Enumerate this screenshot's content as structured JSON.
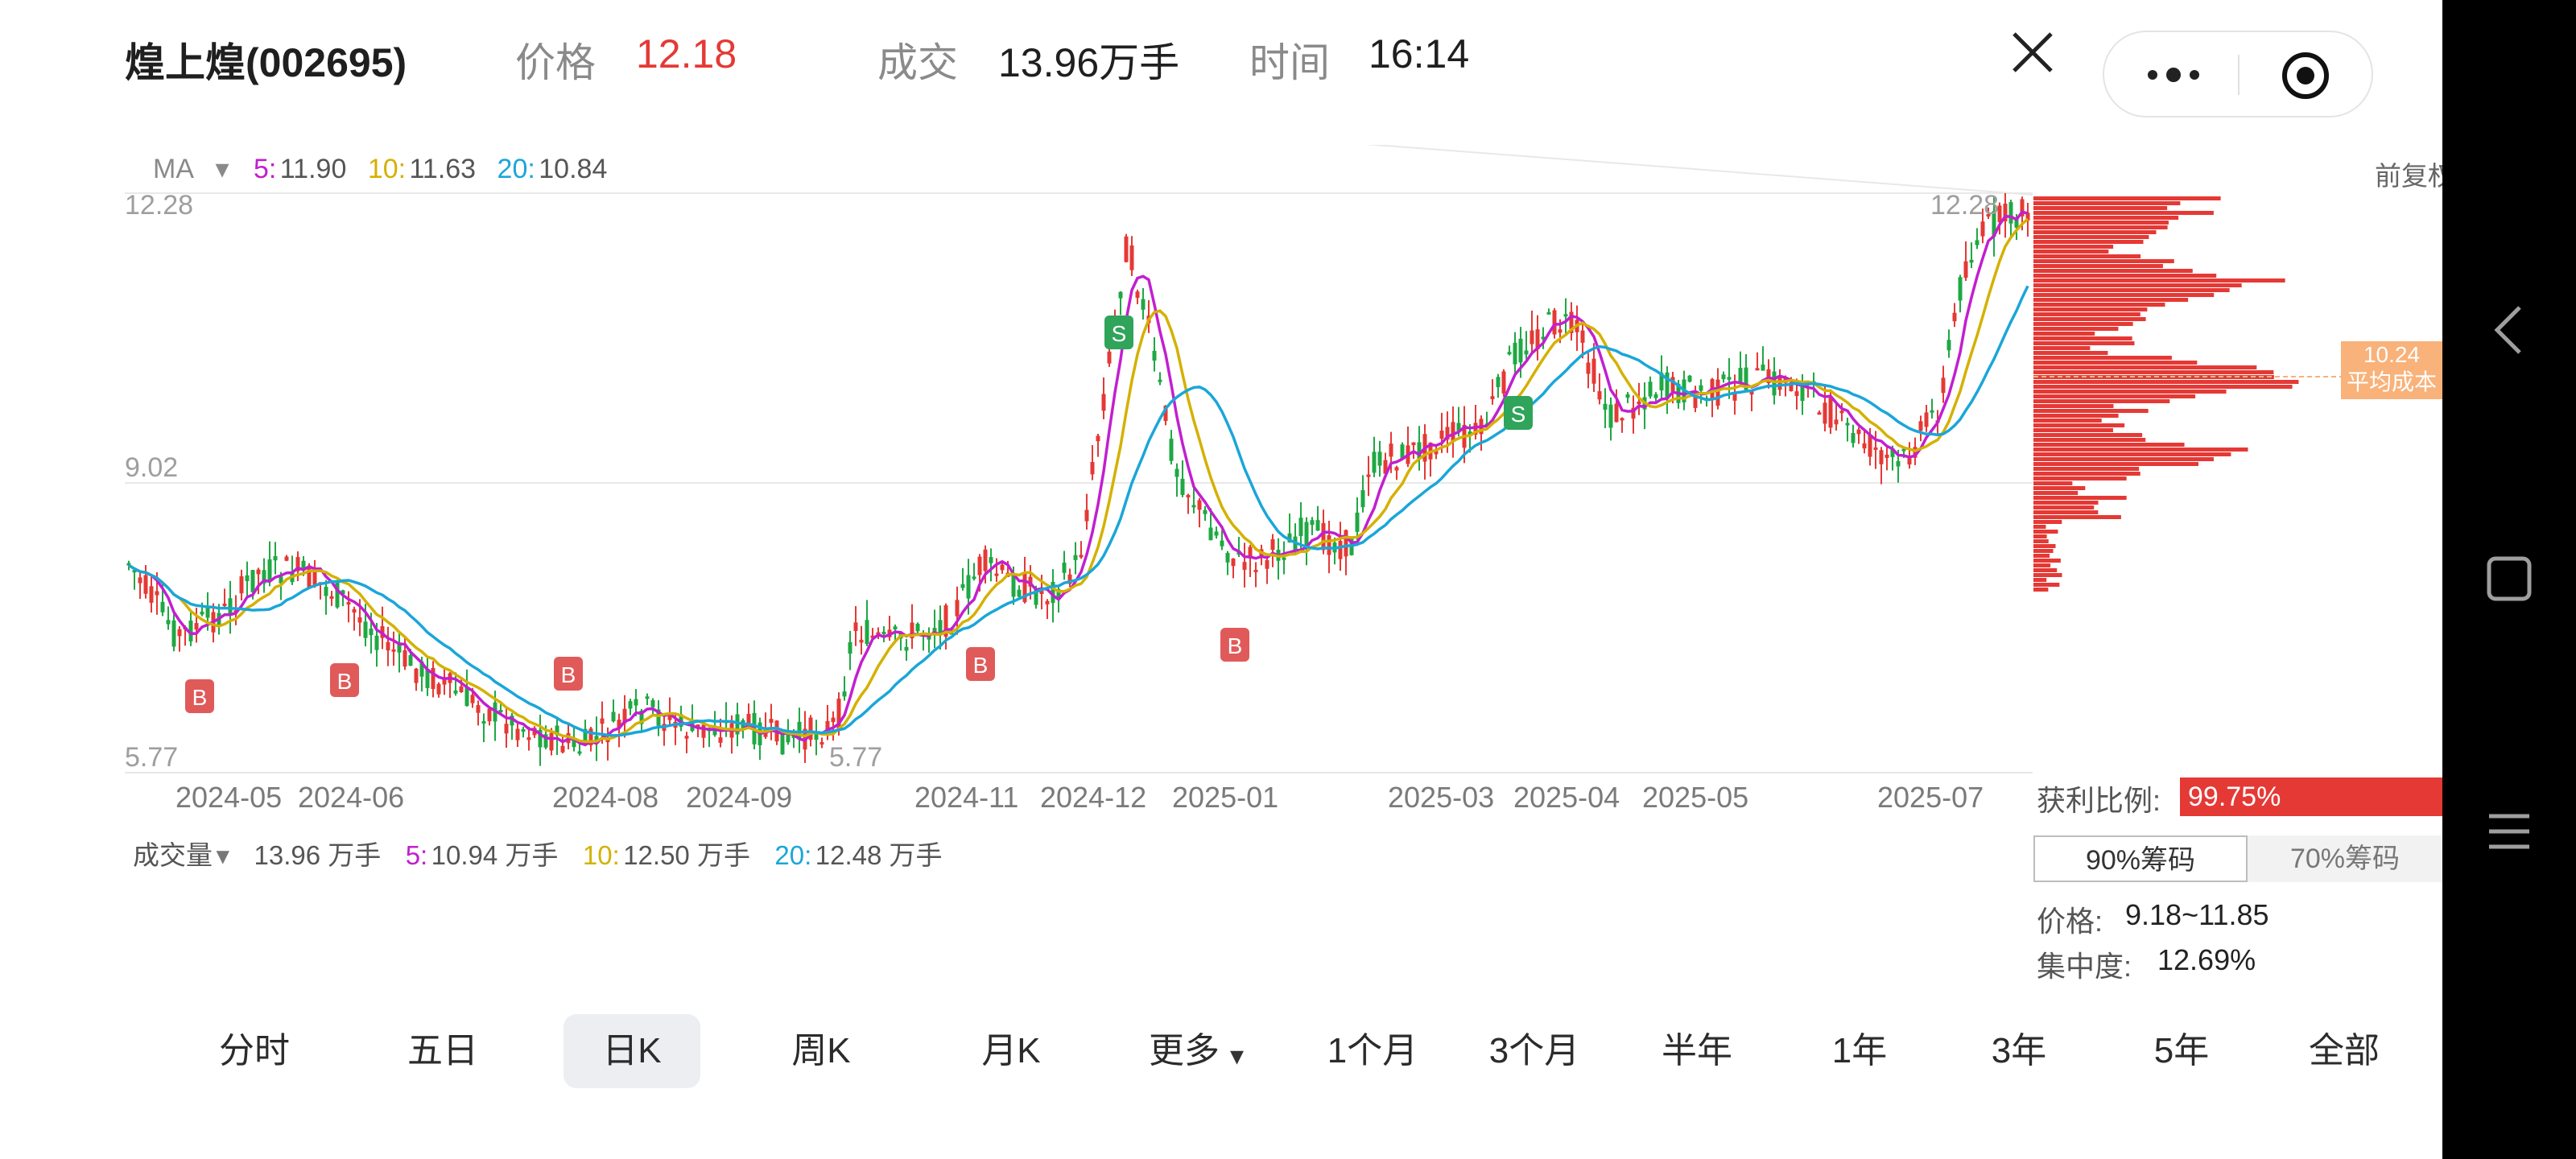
{
  "header": {
    "stock": "煌上煌(002695)",
    "price_label": "价格",
    "price_value": "12.18",
    "volume_label": "成交",
    "volume_value": "13.96万手",
    "time_label": "时间",
    "time_value": "16:14"
  },
  "ma": {
    "label": "MA",
    "ma5_key": "5:",
    "ma5_value": "11.90",
    "ma10_key": "10:",
    "ma10_value": "11.63",
    "ma20_key": "20:",
    "ma20_value": "10.84",
    "adjust": "前复权",
    "colors": {
      "ma5": "#c21fcf",
      "ma10": "#d4b100",
      "ma20": "#1aa6d9",
      "up": "#e53935",
      "down": "#1fa844"
    }
  },
  "price_axis": {
    "top": "12.28",
    "mid": "9.02",
    "bottom": "5.77",
    "top_right": "12.28",
    "low_marker": "5.77"
  },
  "dates": [
    "2024-05",
    "2024-06",
    "2024-08",
    "2024-09",
    "2024-11",
    "2024-12",
    "2025-01",
    "2025-03",
    "2025-04",
    "2025-05",
    "2025-07"
  ],
  "signals": {
    "buy": "B",
    "sell": "S"
  },
  "avg_cost": {
    "value": "10.24",
    "label": "平均成本"
  },
  "volume": {
    "label": "成交量",
    "total": "13.96 万手",
    "ma5_key": "5:",
    "ma5_value": "10.94 万手",
    "ma10_key": "10:",
    "ma10_value": "12.50 万手",
    "ma20_key": "20:",
    "ma20_value": "12.48 万手"
  },
  "chips": {
    "profit_label": "获利比例:",
    "profit_value": "99.75%",
    "tab_90": "90%筹码",
    "tab_70": "70%筹码",
    "price_label": "价格:",
    "price_range": "9.18~11.85",
    "concentration_label": "集中度:",
    "concentration_value": "12.69%"
  },
  "tabs": [
    "分时",
    "五日",
    "日K",
    "周K",
    "月K",
    "更多",
    "1个月",
    "3个月",
    "半年",
    "1年",
    "3年",
    "5年",
    "全部"
  ],
  "selected_tab": "日K"
}
